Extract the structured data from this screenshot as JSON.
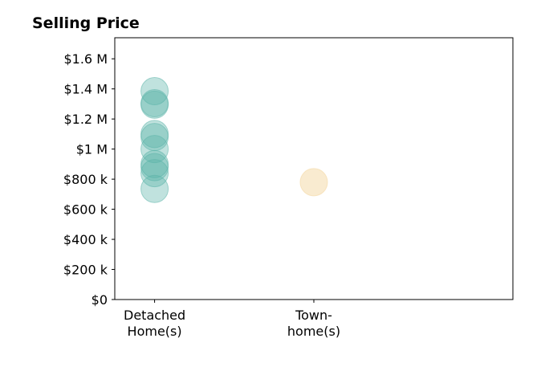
{
  "chart_data": {
    "type": "scatter",
    "title": "Selling Price",
    "xlabel": "",
    "ylabel": "",
    "categories": [
      {
        "line1": "Detached",
        "line2": "Home(s)"
      },
      {
        "line1": "Town-",
        "line2": "home(s)"
      }
    ],
    "x_range": [
      -0.25,
      2.25
    ],
    "ylim": [
      0,
      1740000
    ],
    "y_ticks": [
      {
        "value": 0,
        "label": "$0"
      },
      {
        "value": 200000,
        "label": "$200 k"
      },
      {
        "value": 400000,
        "label": "$400 k"
      },
      {
        "value": 600000,
        "label": "$600 k"
      },
      {
        "value": 800000,
        "label": "$800 k"
      },
      {
        "value": 1000000,
        "label": "$1 M"
      },
      {
        "value": 1200000,
        "label": "$1.2 M"
      },
      {
        "value": 1400000,
        "label": "$1.4 M"
      },
      {
        "value": 1600000,
        "label": "$1.6 M"
      }
    ],
    "grid": false,
    "legend": "none",
    "series": [
      {
        "category_index": 0,
        "color": "#5ab4a8",
        "opacity": 0.38,
        "values": [
          1385000,
          1305000,
          1295000,
          1100000,
          1080000,
          1000000,
          900000,
          880000,
          840000,
          735000
        ]
      },
      {
        "category_index": 1,
        "color": "#f5deb0",
        "opacity": 0.6,
        "values": [
          780000
        ]
      }
    ]
  }
}
